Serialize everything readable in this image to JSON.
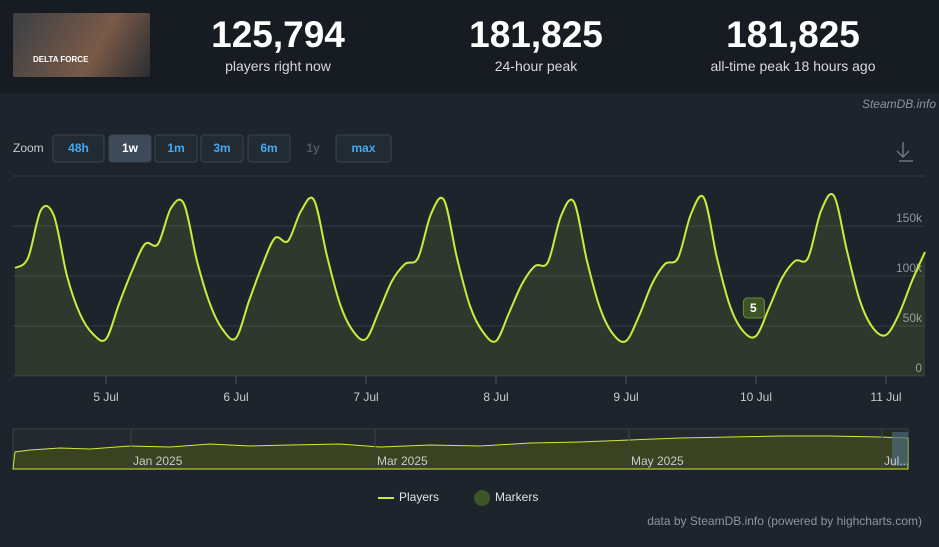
{
  "header": {
    "game_logo": "DELTA FORCE",
    "stats": [
      {
        "number": "125,794",
        "label": "players right now"
      },
      {
        "number": "181,825",
        "label": "24-hour peak"
      },
      {
        "number": "181,825",
        "label": "all-time peak 18 hours ago"
      }
    ],
    "watermark": "SteamDB.info"
  },
  "zoom": {
    "label": "Zoom",
    "buttons": [
      "48h",
      "1w",
      "1m",
      "3m",
      "6m",
      "1y",
      "max"
    ],
    "selected": "1w",
    "disabled": [
      "1y"
    ]
  },
  "navigator": {
    "labels": [
      "Jan 2025",
      "Mar 2025",
      "May 2025",
      "Jul..."
    ]
  },
  "credits": "data by SteamDB.info (powered by highcharts.com)",
  "chart_data": {
    "type": "line",
    "x": [
      4.3,
      4.4,
      4.5,
      4.6,
      4.7,
      4.8,
      4.9,
      5.0,
      5.1,
      5.2,
      5.3,
      5.4,
      5.5,
      5.6,
      5.7,
      5.8,
      5.9,
      6.0,
      6.1,
      6.2,
      6.3,
      6.4,
      6.5,
      6.6,
      6.7,
      6.8,
      6.9,
      7.0,
      7.1,
      7.2,
      7.3,
      7.4,
      7.5,
      7.6,
      7.7,
      7.8,
      7.9,
      8.0,
      8.1,
      8.2,
      8.3,
      8.4,
      8.5,
      8.6,
      8.7,
      8.8,
      8.9,
      9.0,
      9.1,
      9.2,
      9.3,
      9.4,
      9.5,
      9.6,
      9.7,
      9.8,
      9.9,
      10.0,
      10.1,
      10.2,
      10.3,
      10.4,
      10.5,
      10.6,
      10.7,
      10.8,
      10.9,
      11.0,
      11.1,
      11.2,
      11.3
    ],
    "series": [
      {
        "name": "Players",
        "color": "#cdeb3b",
        "values": [
          108000,
          118000,
          166000,
          160000,
          100000,
          62000,
          42000,
          37000,
          72000,
          105000,
          132000,
          132000,
          168000,
          172000,
          115000,
          72000,
          46000,
          38000,
          75000,
          110000,
          138000,
          135000,
          165000,
          176000,
          120000,
          72000,
          45000,
          37000,
          65000,
          95000,
          112000,
          118000,
          162000,
          176000,
          118000,
          70000,
          44000,
          35000,
          63000,
          92000,
          110000,
          114000,
          160000,
          174000,
          115000,
          68000,
          42000,
          35000,
          60000,
          92000,
          112000,
          118000,
          162000,
          178000,
          118000,
          70000,
          45000,
          40000,
          68000,
          98000,
          115000,
          118000,
          165000,
          180000,
          125000,
          75000,
          48000,
          41000,
          62000,
          95000,
          124000
        ]
      },
      {
        "name": "Markers",
        "color": "#3d5526",
        "x": [
          9.98
        ],
        "labels": [
          "5"
        ]
      }
    ],
    "xlim": [
      4.3,
      11.3
    ],
    "xticks": [
      {
        "value": 5,
        "label": "5 Jul"
      },
      {
        "value": 6,
        "label": "6 Jul"
      },
      {
        "value": 7,
        "label": "7 Jul"
      },
      {
        "value": 8,
        "label": "8 Jul"
      },
      {
        "value": 9,
        "label": "9 Jul"
      },
      {
        "value": 10,
        "label": "10 Jul"
      },
      {
        "value": 11,
        "label": "11 Jul"
      }
    ],
    "ylim": [
      0,
      200000
    ],
    "yticks": [
      0,
      {
        "value": 50000,
        "label": "50k"
      },
      {
        "value": 100000,
        "label": "100k"
      },
      {
        "value": 150000,
        "label": "150k"
      }
    ],
    "grid": true
  }
}
